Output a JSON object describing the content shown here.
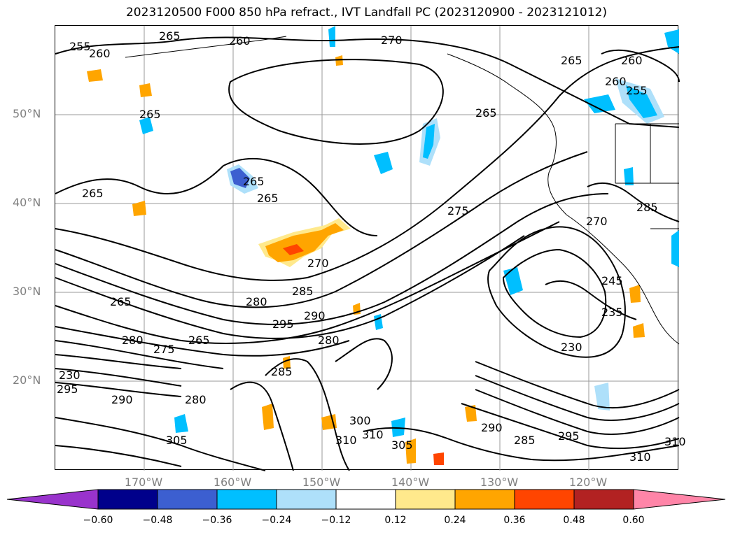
{
  "title": "2023120500 F000 850 hPa refract., IVT Landfall PC (2023120900 - 2023121012)",
  "map": {
    "lat_labels": [
      "50°N",
      "40°N",
      "30°N",
      "20°N"
    ],
    "lon_labels": [
      "170°W",
      "160°W",
      "150°W",
      "140°W",
      "130°W",
      "120°W"
    ],
    "contour_labels": [
      "255",
      "260",
      "265",
      "260",
      "270",
      "265",
      "260",
      "260",
      "255",
      "265",
      "265",
      "265",
      "265",
      "275",
      "265",
      "270",
      "280",
      "285",
      "295",
      "290",
      "280",
      "265",
      "270",
      "285",
      "230",
      "245",
      "235",
      "230",
      "295",
      "290",
      "280",
      "285",
      "300",
      "305",
      "310",
      "310",
      "305",
      "290",
      "285",
      "295",
      "310",
      "310",
      "280",
      "275",
      "265"
    ]
  },
  "colors": {
    "purple": "#9933cc",
    "navy": "#00008b",
    "royal": "#3c5fd0",
    "sky": "#00bfff",
    "lightblue": "#aee0fa",
    "white": "#ffffff",
    "yellow": "#ffe98c",
    "orange": "#ffa500",
    "red": "#ff4500",
    "darkred": "#b22222",
    "pink": "#ff85a8"
  },
  "colorbar": {
    "ticks": [
      "−0.60",
      "−0.48",
      "−0.36",
      "−0.24",
      "−0.12",
      "0.12",
      "0.24",
      "0.36",
      "0.48",
      "0.60"
    ]
  }
}
